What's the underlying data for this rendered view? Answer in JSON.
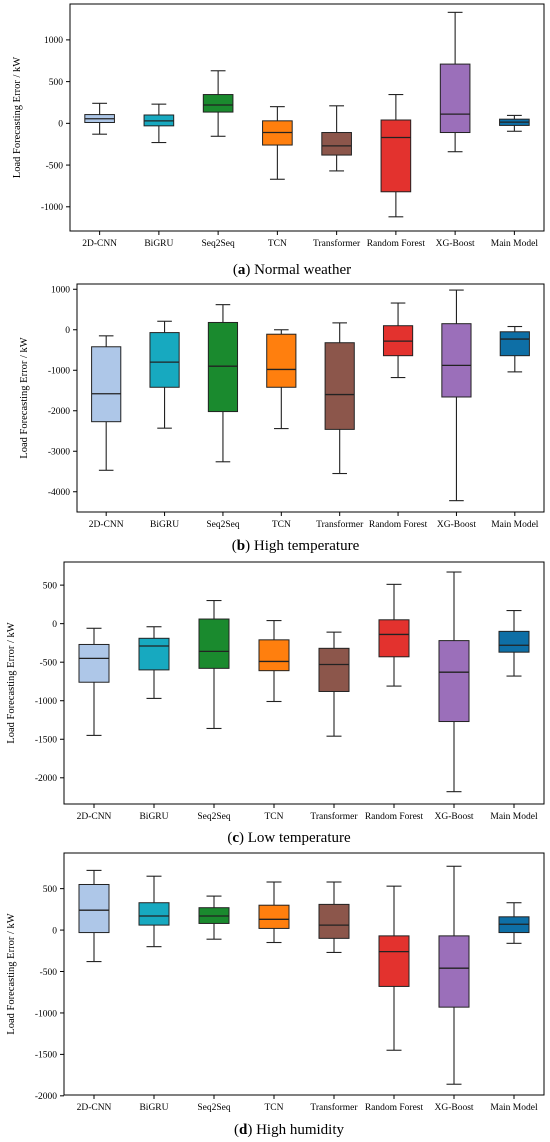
{
  "colors": [
    "#aec7e8",
    "#17a9c0",
    "#1a8a2e",
    "#ff7f0e",
    "#8c564b",
    "#e3322e",
    "#9b6fba",
    "#0e6fa6"
  ],
  "chart_data": [
    {
      "type": "box",
      "caption_letter": "a",
      "caption_text": "Normal weather",
      "ylabel": "Load Forecasting Error / kW",
      "categories": [
        "2D-CNN",
        "BiGRU",
        "Seq2Seq",
        "TCN",
        "Transformer",
        "Random Forest",
        "XG-Boost",
        "Main Model"
      ],
      "yticks": [
        -1000,
        -500,
        0,
        500,
        1000
      ],
      "ylim": [
        -1290,
        1430
      ],
      "boxes": [
        {
          "min": -130,
          "q1": 10,
          "median": 55,
          "q3": 105,
          "max": 240
        },
        {
          "min": -230,
          "q1": -30,
          "median": 30,
          "q3": 100,
          "max": 230
        },
        {
          "min": -155,
          "q1": 135,
          "median": 220,
          "q3": 345,
          "max": 630
        },
        {
          "min": -670,
          "q1": -260,
          "median": -110,
          "q3": 30,
          "max": 200
        },
        {
          "min": -570,
          "q1": -380,
          "median": -270,
          "q3": -110,
          "max": 210
        },
        {
          "min": -1120,
          "q1": -820,
          "median": -170,
          "q3": 40,
          "max": 345
        },
        {
          "min": -340,
          "q1": -110,
          "median": 110,
          "q3": 710,
          "max": 1330
        },
        {
          "min": -95,
          "q1": -25,
          "median": 15,
          "q3": 50,
          "max": 95
        }
      ]
    },
    {
      "type": "box",
      "caption_letter": "b",
      "caption_text": "High temperature",
      "ylabel": "Load Forecasting Error / kW",
      "categories": [
        "2D-CNN",
        "BiGRU",
        "Seq2Seq",
        "TCN",
        "Transformer",
        "Random Forest",
        "XG-Boost",
        "Main Model"
      ],
      "yticks": [
        -4000,
        -3000,
        -2000,
        -1000,
        0,
        1000
      ],
      "ylim": [
        -4500,
        1130
      ],
      "boxes": [
        {
          "min": -3470,
          "q1": -2270,
          "median": -1580,
          "q3": -420,
          "max": -150
        },
        {
          "min": -2430,
          "q1": -1420,
          "median": -800,
          "q3": -70,
          "max": 210
        },
        {
          "min": -3260,
          "q1": -2020,
          "median": -900,
          "q3": 180,
          "max": 620
        },
        {
          "min": -2440,
          "q1": -1420,
          "median": -980,
          "q3": -110,
          "max": 0
        },
        {
          "min": -3550,
          "q1": -2460,
          "median": -1600,
          "q3": -320,
          "max": 170
        },
        {
          "min": -1180,
          "q1": -640,
          "median": -280,
          "q3": 100,
          "max": 660
        },
        {
          "min": -4220,
          "q1": -1660,
          "median": -880,
          "q3": 150,
          "max": 980
        },
        {
          "min": -1040,
          "q1": -640,
          "median": -230,
          "q3": -50,
          "max": 80
        }
      ]
    },
    {
      "type": "box",
      "caption_letter": "c",
      "caption_text": "Low temperature",
      "ylabel": "Load Forecasting Error / kW",
      "categories": [
        "2D-CNN",
        "BiGRU",
        "Seq2Seq",
        "TCN",
        "Transformer",
        "Random Forest",
        "XG-Boost",
        "Main Model"
      ],
      "yticks": [
        -2000,
        -1500,
        -1000,
        -500,
        0,
        500
      ],
      "ylim": [
        -2340,
        800
      ],
      "boxes": [
        {
          "min": -1450,
          "q1": -760,
          "median": -450,
          "q3": -270,
          "max": -60
        },
        {
          "min": -970,
          "q1": -600,
          "median": -290,
          "q3": -190,
          "max": -40
        },
        {
          "min": -1360,
          "q1": -580,
          "median": -360,
          "q3": 60,
          "max": 300
        },
        {
          "min": -1010,
          "q1": -610,
          "median": -490,
          "q3": -210,
          "max": 40
        },
        {
          "min": -1460,
          "q1": -880,
          "median": -530,
          "q3": -320,
          "max": -110
        },
        {
          "min": -810,
          "q1": -430,
          "median": -140,
          "q3": 50,
          "max": 510
        },
        {
          "min": -2180,
          "q1": -1270,
          "median": -630,
          "q3": -220,
          "max": 670
        },
        {
          "min": -680,
          "q1": -370,
          "median": -280,
          "q3": -100,
          "max": 170
        }
      ]
    },
    {
      "type": "box",
      "caption_letter": "d",
      "caption_text": "High humidity",
      "ylabel": "Load Forecasting Error / kW",
      "categories": [
        "2D-CNN",
        "BiGRU",
        "Seq2Seq",
        "TCN",
        "Transformer",
        "Random Forest",
        "XG-Boost",
        "Main Model"
      ],
      "yticks": [
        -2000,
        -1500,
        -1000,
        -500,
        0,
        500
      ],
      "ylim": [
        -1990,
        930
      ],
      "boxes": [
        {
          "min": -380,
          "q1": -30,
          "median": 240,
          "q3": 550,
          "max": 720
        },
        {
          "min": -200,
          "q1": 60,
          "median": 170,
          "q3": 330,
          "max": 650
        },
        {
          "min": -110,
          "q1": 80,
          "median": 170,
          "q3": 270,
          "max": 410
        },
        {
          "min": -150,
          "q1": 20,
          "median": 130,
          "q3": 300,
          "max": 580
        },
        {
          "min": -270,
          "q1": -100,
          "median": 60,
          "q3": 310,
          "max": 580
        },
        {
          "min": -1450,
          "q1": -680,
          "median": -260,
          "q3": -70,
          "max": 530
        },
        {
          "min": -1860,
          "q1": -930,
          "median": -460,
          "q3": -70,
          "max": 770
        },
        {
          "min": -160,
          "q1": -30,
          "median": 70,
          "q3": 160,
          "max": 330
        }
      ]
    }
  ]
}
